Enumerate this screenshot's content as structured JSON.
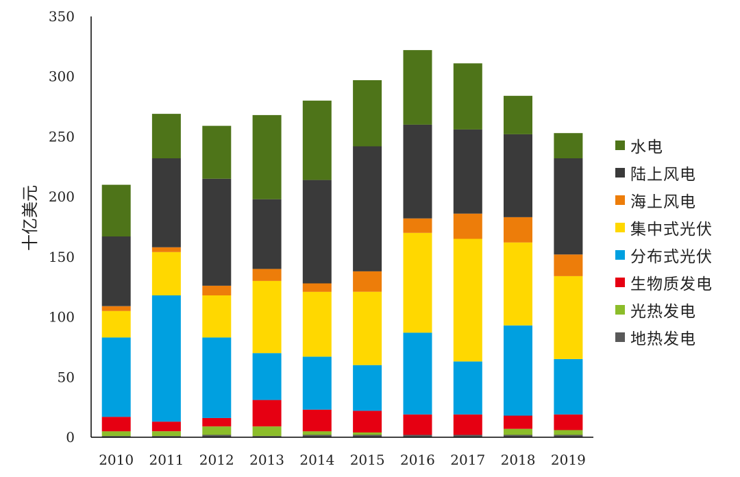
{
  "chart_data": {
    "type": "bar",
    "stacked": true,
    "title": "",
    "xlabel": "",
    "ylabel": "十亿美元",
    "ylim": [
      0,
      350
    ],
    "yticks": [
      0,
      50,
      100,
      150,
      200,
      250,
      300,
      350
    ],
    "categories": [
      "2010",
      "2011",
      "2012",
      "2013",
      "2014",
      "2015",
      "2016",
      "2017",
      "2018",
      "2019"
    ],
    "legend_position": "right",
    "grid": false,
    "series": [
      {
        "name": "地热发电",
        "color": "#595959",
        "values": [
          1,
          1,
          2,
          1,
          2,
          2,
          2,
          2,
          2,
          2
        ]
      },
      {
        "name": "光热发电",
        "color": "#8cbd2a",
        "values": [
          4,
          4,
          7,
          8,
          3,
          2,
          0,
          0,
          5,
          4
        ]
      },
      {
        "name": "生物质发电",
        "color": "#e60012",
        "values": [
          12,
          8,
          7,
          22,
          18,
          18,
          17,
          17,
          11,
          13
        ]
      },
      {
        "name": "分布式光伏",
        "color": "#00a0e0",
        "values": [
          66,
          105,
          67,
          39,
          44,
          38,
          68,
          44,
          75,
          46
        ]
      },
      {
        "name": "集中式光伏",
        "color": "#ffd800",
        "values": [
          22,
          36,
          35,
          60,
          54,
          61,
          83,
          102,
          69,
          69
        ]
      },
      {
        "name": "海上风电",
        "color": "#ed7d0a",
        "values": [
          4,
          4,
          8,
          10,
          7,
          17,
          12,
          21,
          21,
          18
        ]
      },
      {
        "name": "陆上风电",
        "color": "#3a3a3a",
        "values": [
          58,
          74,
          89,
          58,
          86,
          104,
          78,
          70,
          69,
          80
        ]
      },
      {
        "name": "水电",
        "color": "#4e7419",
        "values": [
          43,
          37,
          44,
          70,
          66,
          55,
          62,
          55,
          32,
          21
        ]
      }
    ]
  }
}
